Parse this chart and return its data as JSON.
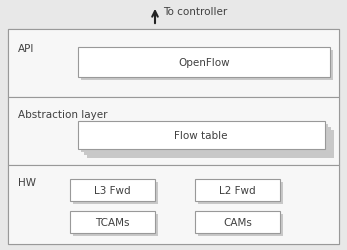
{
  "fig_bg": "#e8e8e8",
  "section_bg": "#f7f7f7",
  "box_fill": "#ffffff",
  "shadow_color": "#c8c8c8",
  "edge_color": "#999999",
  "text_color": "#404040",
  "arrow_color": "#222222",
  "to_controller": "To controller",
  "api_label": "API",
  "openflow_label": "OpenFlow",
  "abs_label": "Abstraction layer",
  "flow_label": "Flow table",
  "hw_label": "HW",
  "font_size": 7.5,
  "label_font_size": 7.5
}
